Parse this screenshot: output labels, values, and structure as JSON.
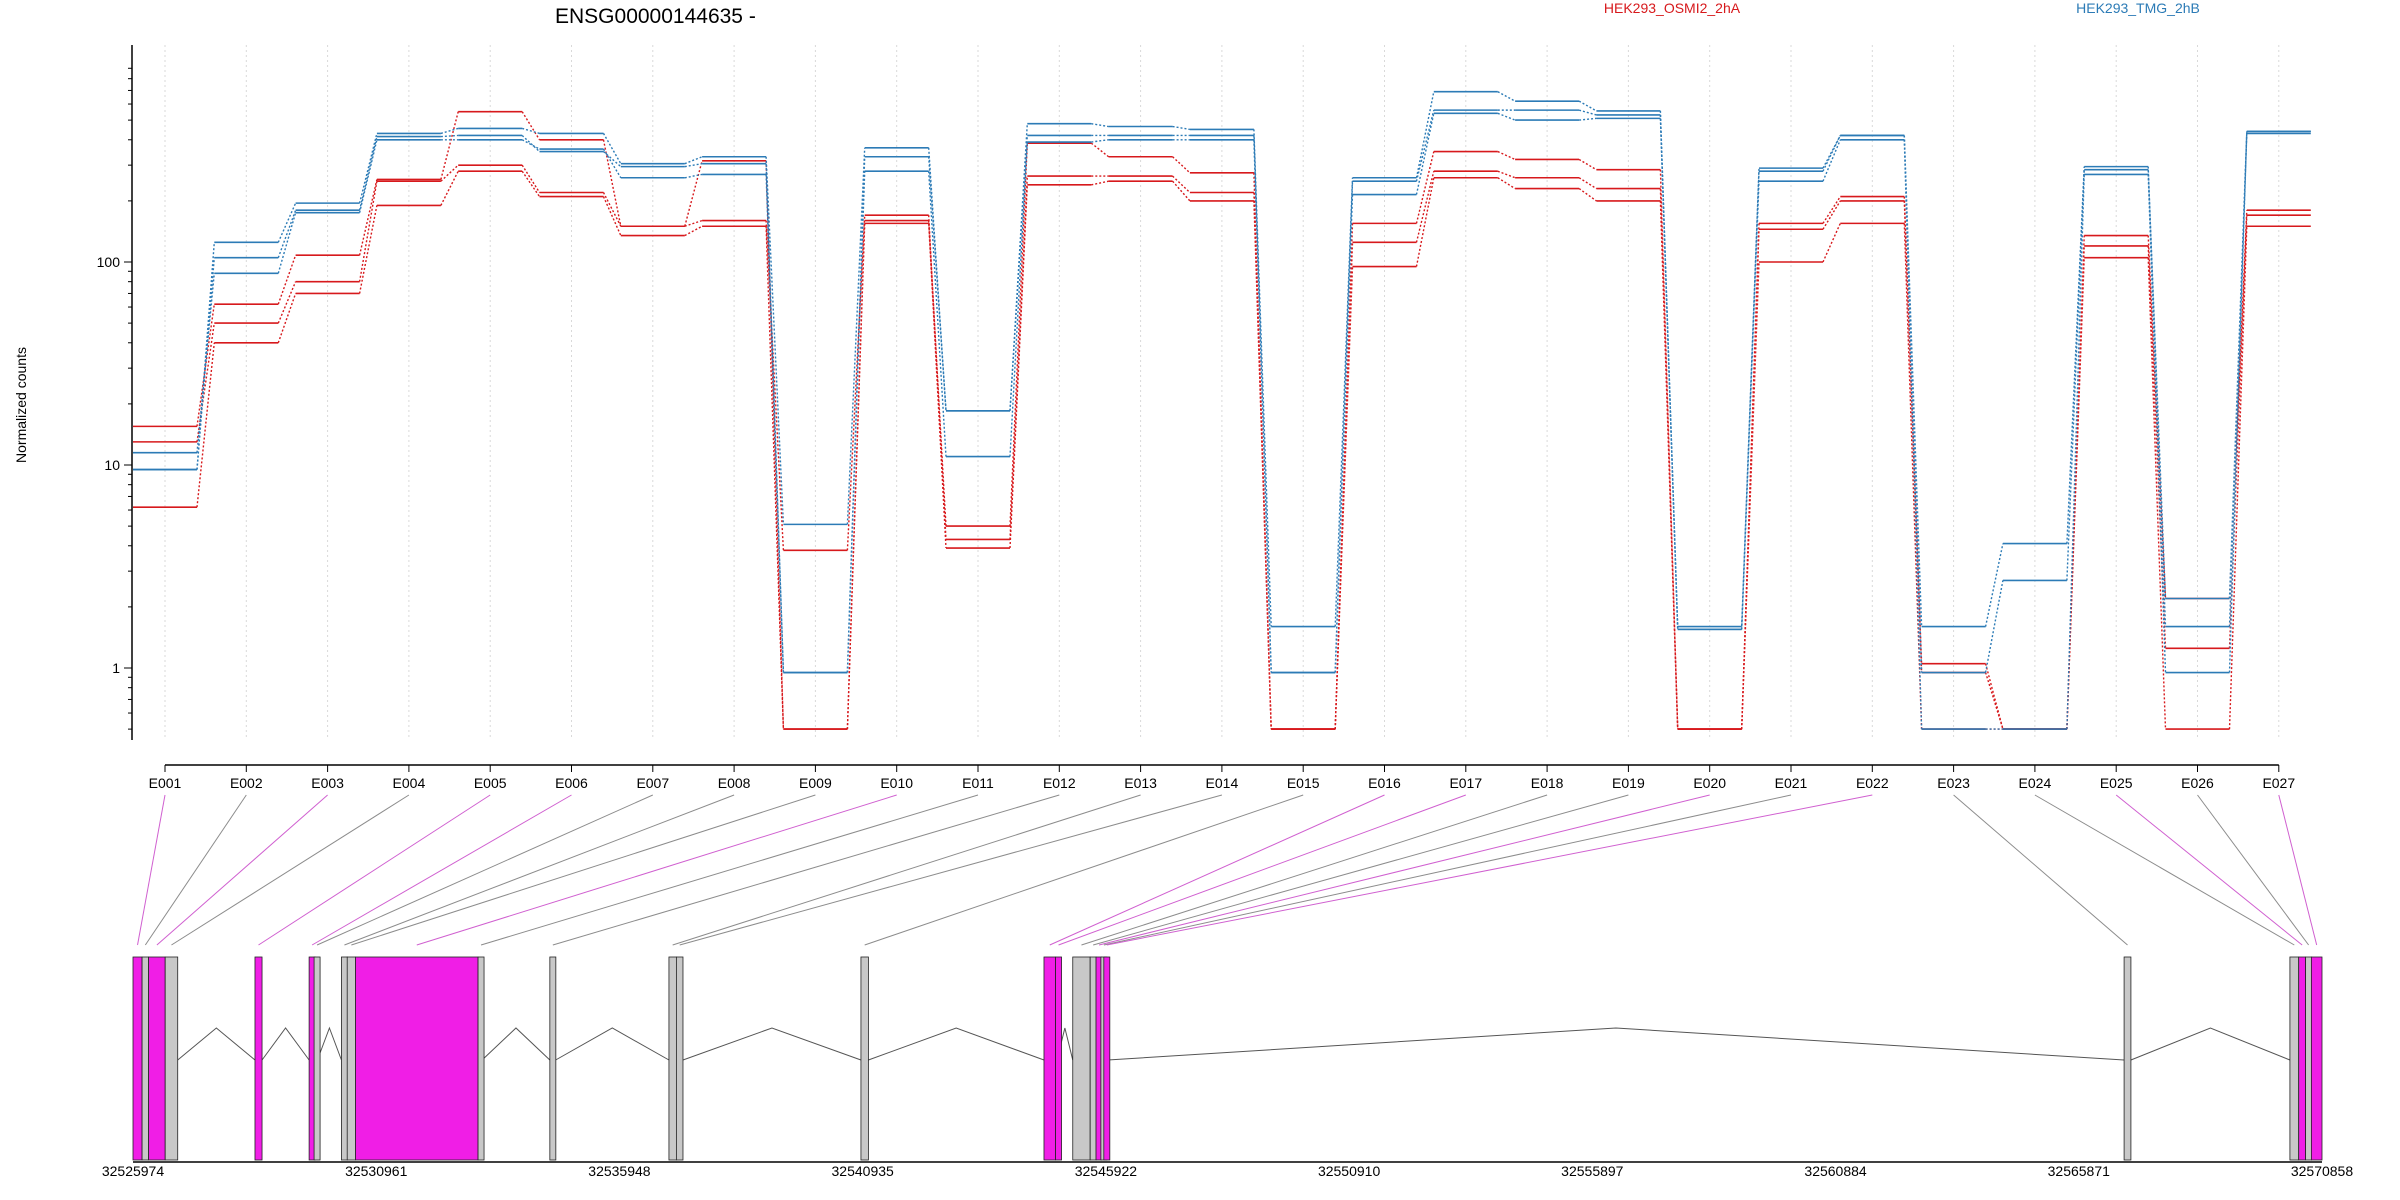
{
  "chart_data": {
    "type": "line",
    "title": "ENSG00000144635 -",
    "ylabel": "Normalized counts",
    "yscale": "log",
    "ylim": [
      0.45,
      900
    ],
    "yticks": [
      "1",
      "10",
      "100"
    ],
    "grid": "vertical dotted",
    "legend_placement": "top-right",
    "categories": [
      "E001",
      "E002",
      "E003",
      "E004",
      "E005",
      "E006",
      "E007",
      "E008",
      "E009",
      "E010",
      "E011",
      "E012",
      "E013",
      "E014",
      "E015",
      "E016",
      "E017",
      "E018",
      "E019",
      "E020",
      "E021",
      "E022",
      "E023",
      "E024",
      "E025",
      "E026",
      "E027"
    ],
    "series": [
      {
        "name": "HEK293_OSMI2_2hA",
        "color": "#d7191c",
        "values": [
          6.2,
          40,
          70,
          190,
          280,
          210,
          135,
          150,
          0.5,
          155,
          3.9,
          240,
          250,
          200,
          0.5,
          95,
          260,
          230,
          200,
          0.5,
          100,
          155,
          0.5,
          0.5,
          105,
          0.5,
          150
        ]
      },
      {
        "name": "HEK293_OSMI2_2hA",
        "color": "#d7191c",
        "values": [
          13,
          50,
          80,
          250,
          300,
          220,
          150,
          160,
          3.8,
          170,
          4.3,
          265,
          265,
          220,
          0.5,
          125,
          280,
          260,
          230,
          0.5,
          145,
          200,
          1.05,
          0.5,
          120,
          1.25,
          170
        ]
      },
      {
        "name": "HEK293_OSMI2_2hA",
        "color": "#d7191c",
        "values": [
          15.5,
          62,
          108,
          255,
          550,
          400,
          150,
          315,
          0.5,
          160,
          5,
          385,
          330,
          275,
          0.5,
          155,
          350,
          320,
          285,
          0.5,
          155,
          210,
          0.95,
          0.5,
          135,
          2.2,
          180
        ]
      },
      {
        "name": "HEK293_TMG_2hB",
        "color": "#2c7bb6",
        "values": [
          9.5,
          125,
          195,
          430,
          455,
          430,
          305,
          330,
          5.1,
          365,
          18.5,
          480,
          465,
          450,
          1.6,
          260,
          690,
          620,
          555,
          1.6,
          290,
          420,
          1.6,
          4.1,
          295,
          1.6,
          430
        ]
      },
      {
        "name": "HEK293_TMG_2hB",
        "color": "#2c7bb6",
        "values": [
          9.5,
          105,
          180,
          415,
          420,
          350,
          295,
          305,
          0.95,
          330,
          18.5,
          420,
          420,
          420,
          0.95,
          250,
          560,
          560,
          530,
          1.55,
          280,
          420,
          0.95,
          2.7,
          285,
          2.2,
          440
        ]
      },
      {
        "name": "HEK293_TMG_2hB",
        "color": "#2c7bb6",
        "values": [
          11.5,
          88,
          175,
          400,
          400,
          360,
          260,
          270,
          0.95,
          280,
          11,
          390,
          400,
          400,
          0.95,
          215,
          540,
          500,
          510,
          1.55,
          250,
          400,
          0.5,
          0.5,
          270,
          0.95,
          440
        ]
      }
    ],
    "legend": [
      {
        "label": "HEK293_OSMI2_2hA",
        "color": "#d7191c"
      },
      {
        "label": "HEK293_TMG_2hB",
        "color": "#2c7bb6"
      }
    ],
    "gene_model": {
      "coordinate_labels": [
        "32525974",
        "32530961",
        "32535948",
        "32540935",
        "32545922",
        "32550910",
        "32555897",
        "32560884",
        "32565871",
        "32570858"
      ],
      "range": [
        32525974,
        32570858
      ],
      "exon_colors": {
        "differential": "#f01ee6",
        "non_differential": "#c8c8c8"
      },
      "exons": [
        {
          "id": "E001",
          "start": 32525974,
          "end": 32526160,
          "diff": true
        },
        {
          "id": "E002",
          "start": 32526160,
          "end": 32526294,
          "diff": false
        },
        {
          "id": "E003",
          "start": 32526294,
          "end": 32526634,
          "diff": true
        },
        {
          "id": "E004",
          "start": 32526634,
          "end": 32526891,
          "diff": false
        },
        {
          "id": "E005",
          "start": 32528475,
          "end": 32528620,
          "diff": true
        },
        {
          "id": "E006",
          "start": 32529585,
          "end": 32529687,
          "diff": true
        },
        {
          "id": "E007",
          "start": 32529687,
          "end": 32529755,
          "diff": false
        },
        {
          "id": "E008",
          "start": 32530248,
          "end": 32530366,
          "diff": false
        },
        {
          "id": "E009",
          "start": 32530366,
          "end": 32530536,
          "diff": false
        },
        {
          "id": "E010",
          "start": 32530536,
          "end": 32533049,
          "diff": true
        },
        {
          "id": "E011",
          "start": 32533049,
          "end": 32533132,
          "diff": false
        },
        {
          "id": "E012",
          "start": 32534521,
          "end": 32534640,
          "diff": false
        },
        {
          "id": "E013",
          "start": 32536963,
          "end": 32537116,
          "diff": false
        },
        {
          "id": "E014",
          "start": 32537116,
          "end": 32537251,
          "diff": false
        },
        {
          "id": "E015",
          "start": 32540900,
          "end": 32541053,
          "diff": false
        },
        {
          "id": "E016",
          "start": 32544653,
          "end": 32544890,
          "diff": true
        },
        {
          "id": "E017",
          "start": 32544890,
          "end": 32544920,
          "diff": true
        },
        {
          "id": "E018",
          "start": 32545243,
          "end": 32545600,
          "diff": false
        },
        {
          "id": "E019",
          "start": 32545600,
          "end": 32545720,
          "diff": false
        },
        {
          "id": "E020",
          "start": 32545720,
          "end": 32545820,
          "diff": true
        },
        {
          "id": "E021",
          "start": 32545820,
          "end": 32545880,
          "diff": false
        },
        {
          "id": "E022",
          "start": 32545880,
          "end": 32545960,
          "diff": true
        },
        {
          "id": "E023",
          "start": 32566800,
          "end": 32566940,
          "diff": false
        },
        {
          "id": "E024",
          "start": 32570200,
          "end": 32570380,
          "diff": false
        },
        {
          "id": "E025",
          "start": 32570380,
          "end": 32570522,
          "diff": true
        },
        {
          "id": "E026",
          "start": 32570522,
          "end": 32570640,
          "diff": false
        },
        {
          "id": "E027",
          "start": 32570640,
          "end": 32570858,
          "diff": true
        }
      ],
      "introns": [
        [
          32526891,
          32528475
        ],
        [
          32528620,
          32529585
        ],
        [
          32529755,
          32530248
        ],
        [
          32533132,
          32534521
        ],
        [
          32534640,
          32536963
        ],
        [
          32537251,
          32540900
        ],
        [
          32541053,
          32544653
        ],
        [
          32544920,
          32545243
        ],
        [
          32545960,
          32566800
        ],
        [
          32566940,
          32570200
        ]
      ]
    }
  }
}
